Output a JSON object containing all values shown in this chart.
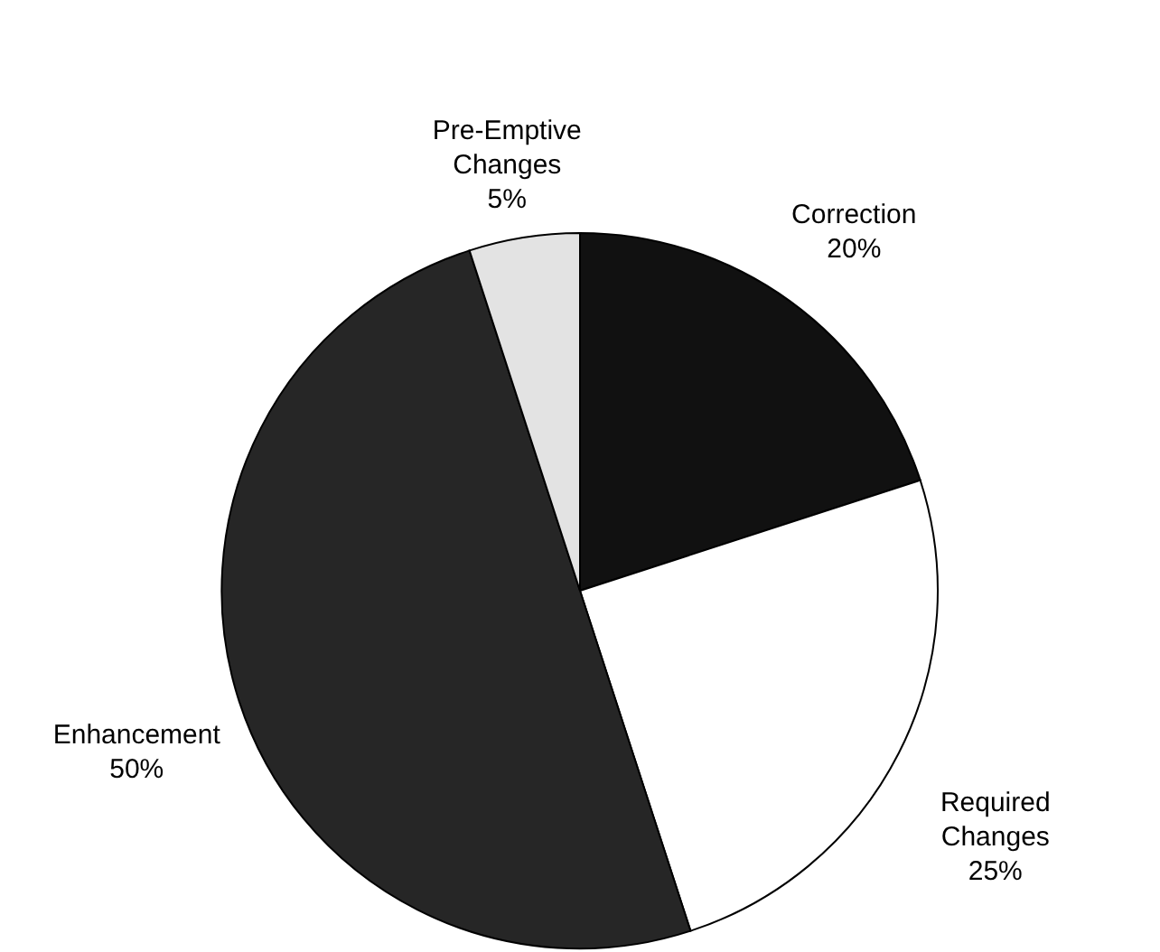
{
  "chart_data": {
    "type": "pie",
    "categories": [
      "Correction",
      "Required Changes",
      "Enhancement",
      "Pre-Emptive Changes"
    ],
    "values": [
      20,
      25,
      50,
      5
    ],
    "value_labels": [
      "20%",
      "25%",
      "50%",
      "5%"
    ],
    "colors": [
      "#111111",
      "#ffffff",
      "#262626",
      "#e3e3e3"
    ]
  }
}
